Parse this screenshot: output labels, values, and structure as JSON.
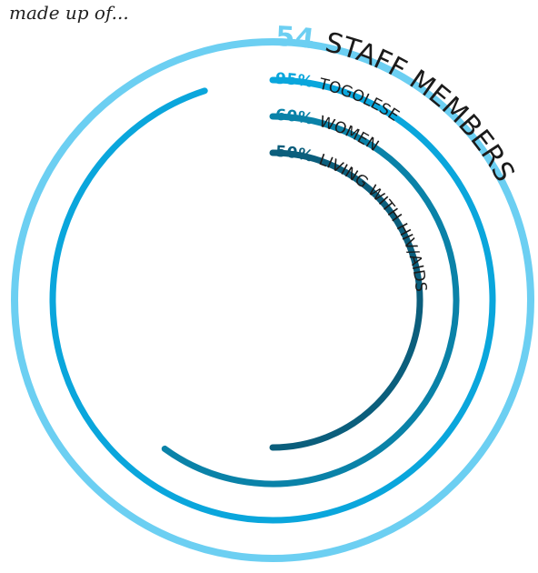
{
  "intro_text": "made up of...",
  "chart_data": {
    "type": "radial-bar",
    "title": "54 STAFF MEMBERS",
    "headline": {
      "value": "54",
      "label": "STAFF MEMBERS"
    },
    "series": [
      {
        "percent": "95%",
        "label": "TOGOLESE",
        "value": 95,
        "color": "#0aa6dc"
      },
      {
        "percent": "60%",
        "label": "WOMEN",
        "value": 60,
        "color": "#0a82a8"
      },
      {
        "percent": "50%",
        "label": "LIVING WITH HIV/AIDS",
        "value": 50,
        "color": "#0b5e7c"
      }
    ],
    "outer_ring": {
      "value": 100,
      "color": "#6ccff2"
    }
  }
}
